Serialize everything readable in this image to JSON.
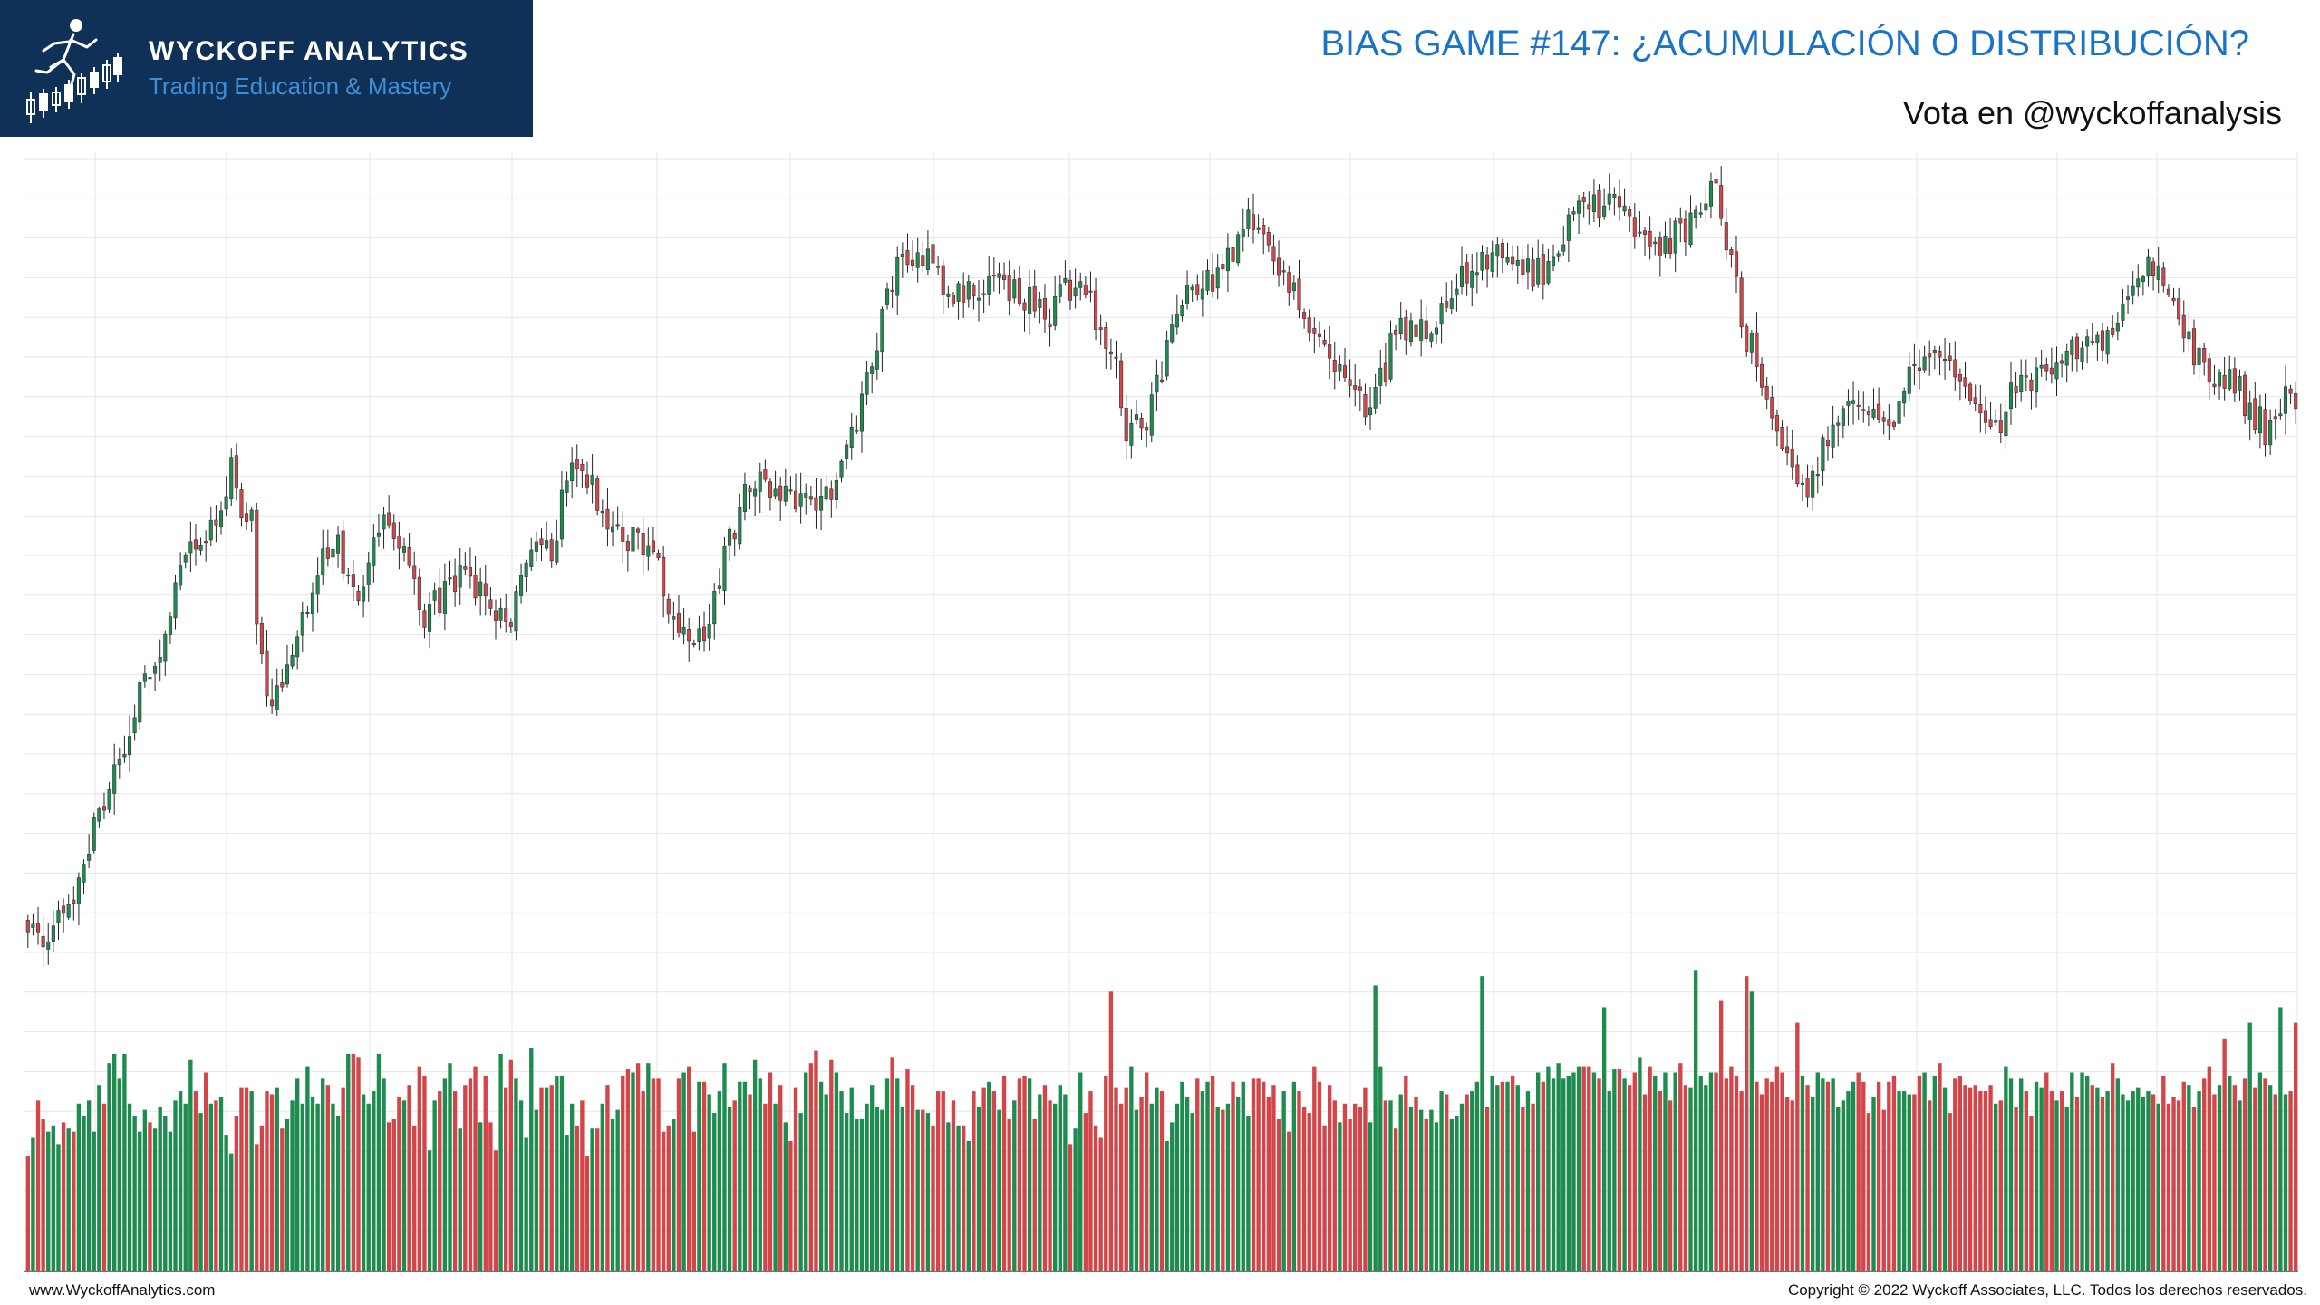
{
  "header": {
    "brand_name": "WYCKOFF ANALYTICS",
    "brand_tagline": "Trading Education & Mastery",
    "title": "BIAS GAME #147: ¿ACUMULACIÓN O DISTRIBUCIÓN?",
    "subtitle": "Vota en @wyckoffanalysis"
  },
  "footer": {
    "website": "www.WyckoffAnalytics.com",
    "copyright": "Copyright © 2022 Wyckoff Associates, LLC. Todos los derechos reservados."
  },
  "colors": {
    "brand_background": "#0f3157",
    "title_blue": "#1a73c6",
    "tagline_blue": "#3d8fd6",
    "up_candle": "#1e8c4e",
    "down_candle": "#d2464a",
    "grid": "#e6e6e6",
    "wick": "#222222"
  },
  "chart_data": {
    "type": "candlestick",
    "title": "",
    "xlabel": "",
    "ylabel": "",
    "grid": true,
    "axes_labels_shown": false,
    "price_range": [
      0,
      100
    ],
    "volume_range": [
      0,
      100
    ],
    "notes": "Price axis is unlabeled; values are relative levels (0 = bottom, 100 = top of the price pane). Volume is relative (0-100).",
    "close_anchors": [
      [
        0,
        4.5
      ],
      [
        4,
        3.0
      ],
      [
        10,
        10.5
      ],
      [
        15,
        21.0
      ],
      [
        20,
        30.0
      ],
      [
        28,
        43.5
      ],
      [
        30,
        49.0
      ],
      [
        35,
        54.0
      ],
      [
        40,
        62.0
      ],
      [
        44,
        55.5
      ],
      [
        42,
        54.5
      ],
      [
        45,
        44.5
      ],
      [
        47,
        33.5
      ],
      [
        50,
        35.0
      ],
      [
        55,
        46.0
      ],
      [
        60,
        53.0
      ],
      [
        65,
        47.5
      ],
      [
        70,
        54.5
      ],
      [
        72,
        55.0
      ],
      [
        75,
        51.5
      ],
      [
        78,
        44.0
      ],
      [
        85,
        48.0
      ],
      [
        90,
        45.5
      ],
      [
        95,
        43.5
      ],
      [
        98,
        52.0
      ],
      [
        103,
        51.0
      ],
      [
        106,
        61.0
      ],
      [
        110,
        60.5
      ],
      [
        116,
        53.5
      ],
      [
        122,
        52.5
      ],
      [
        127,
        44.0
      ],
      [
        132,
        40.0
      ],
      [
        135,
        46.0
      ],
      [
        137,
        51.5
      ],
      [
        140,
        57.0
      ],
      [
        143,
        61.0
      ],
      [
        146,
        60.5
      ],
      [
        150,
        58.0
      ],
      [
        155,
        57.5
      ],
      [
        159,
        60.0
      ],
      [
        163,
        69.0
      ],
      [
        168,
        81.5
      ],
      [
        172,
        89.0
      ],
      [
        178,
        88.0
      ],
      [
        182,
        84.5
      ],
      [
        188,
        86.0
      ],
      [
        195,
        84.0
      ],
      [
        201,
        82.0
      ],
      [
        207,
        86.5
      ],
      [
        214,
        74.5
      ],
      [
        216,
        67.0
      ],
      [
        220,
        69.0
      ],
      [
        223,
        75.5
      ],
      [
        228,
        83.5
      ],
      [
        235,
        88.0
      ],
      [
        241,
        94.0
      ],
      [
        245,
        87.5
      ],
      [
        250,
        84.0
      ],
      [
        254,
        77.0
      ],
      [
        257,
        76.0
      ],
      [
        263,
        70.0
      ],
      [
        266,
        73.0
      ],
      [
        269,
        80.0
      ],
      [
        272,
        80.0
      ],
      [
        276,
        79.5
      ],
      [
        282,
        87.0
      ],
      [
        288,
        89.0
      ],
      [
        294,
        87.0
      ],
      [
        298,
        87.0
      ],
      [
        305,
        96.5
      ],
      [
        311,
        96.0
      ],
      [
        317,
        92.5
      ],
      [
        322,
        90.5
      ],
      [
        327,
        93.5
      ],
      [
        331,
        99.0
      ],
      [
        334,
        92.0
      ],
      [
        337,
        81.0
      ],
      [
        343,
        70.0
      ],
      [
        346,
        64.0
      ],
      [
        350,
        60.0
      ],
      [
        355,
        68.0
      ],
      [
        359,
        71.0
      ],
      [
        363,
        68.5
      ],
      [
        367,
        69.0
      ],
      [
        371,
        76.0
      ],
      [
        375,
        77.5
      ],
      [
        380,
        72.0
      ],
      [
        384,
        70.5
      ],
      [
        387,
        67.0
      ],
      [
        392,
        74.0
      ],
      [
        397,
        74.0
      ],
      [
        402,
        77.0
      ],
      [
        410,
        78.5
      ],
      [
        414,
        85.0
      ],
      [
        418,
        88.5
      ],
      [
        420,
        87.0
      ],
      [
        423,
        83.0
      ],
      [
        426,
        76.5
      ],
      [
        430,
        73.5
      ],
      [
        434,
        73.0
      ],
      [
        437,
        70.0
      ],
      [
        440,
        67.0
      ],
      [
        442,
        69.0
      ],
      [
        444,
        72.5
      ],
      [
        446,
        71.0
      ]
    ],
    "volume_bars": [
      37,
      43,
      55,
      49,
      45,
      47,
      41,
      48,
      46,
      45,
      54,
      50,
      55,
      45,
      60,
      54,
      67,
      70,
      62,
      63,
      54,
      50,
      45,
      52,
      48,
      46,
      53,
      50,
      45,
      55,
      58,
      54,
      68,
      58,
      51,
      64,
      54,
      55,
      56,
      44,
      38,
      50,
      59,
      59,
      58,
      41,
      47,
      58,
      57,
      59,
      46,
      49,
      55,
      62,
      54,
      66,
      56,
      54,
      62,
      60,
      54,
      50,
      59,
      70,
      55,
      69,
      57,
      54,
      58,
      70,
      62,
      48,
      49,
      56,
      55,
      60,
      47,
      66,
      63,
      39,
      55,
      58,
      62,
      67,
      58,
      46,
      60,
      62,
      66,
      48,
      63,
      48,
      39,
      70,
      59,
      68,
      62,
      55,
      43,
      72,
      52,
      59,
      59,
      60,
      63,
      63,
      44,
      54,
      47,
      55,
      37,
      46,
      46,
      54,
      60,
      49,
      52,
      63,
      65,
      64,
      67,
      58,
      67,
      62,
      62,
      45,
      47,
      49,
      64,
      64,
      66,
      45,
      61,
      61,
      57,
      51,
      58,
      67,
      53,
      55,
      61,
      61,
      57,
      68,
      62,
      54,
      64,
      54,
      60,
      48,
      42,
      59,
      51,
      64,
      67,
      71,
      61,
      57,
      68,
      64,
      58,
      51,
      59,
      49,
      49,
      54,
      60,
      53,
      52,
      62,
      69,
      62,
      53,
      65,
      60,
      52,
      52,
      51,
      47,
      58,
      58,
      48,
      55,
      47,
      47,
      42,
      58,
      53,
      59,
      61,
      58,
      52,
      63,
      49,
      55,
      62,
      63,
      62,
      49,
      57,
      60,
      55,
      54,
      60,
      57,
      41,
      46,
      64,
      51,
      58,
      47,
      43,
      63,
      58,
      59,
      54,
      59,
      66,
      52,
      56,
      64,
      54,
      59,
      58,
      42,
      48,
      54,
      61,
      56,
      51,
      62,
      58,
      61,
      63,
      53,
      52,
      54,
      61,
      56,
      61,
      50,
      62,
      62,
      61,
      56,
      60,
      49,
      58,
      45,
      61,
      58,
      53,
      51,
      66,
      61,
      47,
      60,
      55,
      48,
      54,
      49,
      54,
      53,
      59,
      48,
      58,
      66,
      55,
      55,
      46,
      57,
      63,
      53,
      56,
      52,
      49,
      52,
      48,
      58,
      57,
      49,
      50,
      54,
      57,
      58,
      61,
      55,
      53,
      63,
      60,
      61,
      61,
      63,
      60,
      53,
      58,
      54,
      64,
      61,
      66,
      62,
      67,
      62,
      63,
      64,
      66,
      66,
      66,
      64,
      62,
      57,
      58,
      65,
      65,
      62,
      60,
      64,
      69,
      57,
      66,
      63,
      58,
      64,
      55,
      64,
      67,
      60,
      59,
      62,
      63,
      60,
      64,
      64,
      68,
      62,
      66,
      63,
      58,
      62,
      62,
      61,
      57,
      62,
      61,
      66,
      64,
      56,
      55,
      54,
      63,
      60,
      56,
      64,
      62,
      61,
      62,
      53,
      55,
      58,
      61,
      64,
      61,
      51,
      56,
      61,
      52,
      61,
      63,
      58,
      58,
      57,
      57,
      63,
      64,
      55,
      63,
      67,
      59,
      51,
      62,
      63,
      60,
      59,
      60,
      58,
      58,
      60,
      54,
      55,
      66,
      62,
      53,
      62,
      58,
      50,
      61,
      59,
      64,
      58,
      55,
      58,
      53,
      64,
      56,
      64,
      63,
      60,
      59,
      56,
      58,
      67,
      62,
      57,
      55,
      58,
      59,
      56,
      58,
      57,
      54,
      63,
      54,
      56,
      55,
      61,
      60,
      53,
      58,
      62,
      66,
      57,
      60,
      57,
      63,
      60,
      55,
      62,
      65,
      59,
      64,
      62,
      58,
      57,
      56,
      63,
      58,
      62
    ],
    "volume_highlights": [
      [
        19,
        70
      ],
      [
        58,
        62
      ],
      [
        64,
        70
      ],
      [
        128,
        62
      ],
      [
        213,
        90
      ],
      [
        265,
        92
      ],
      [
        286,
        95
      ],
      [
        310,
        85
      ],
      [
        328,
        97
      ],
      [
        333,
        87
      ],
      [
        338,
        95
      ],
      [
        339,
        90
      ],
      [
        348,
        80
      ],
      [
        432,
        75
      ],
      [
        437,
        80
      ],
      [
        441,
        60
      ],
      [
        443,
        85
      ],
      [
        444,
        57
      ],
      [
        446,
        80
      ]
    ],
    "candle_count": 447
  }
}
